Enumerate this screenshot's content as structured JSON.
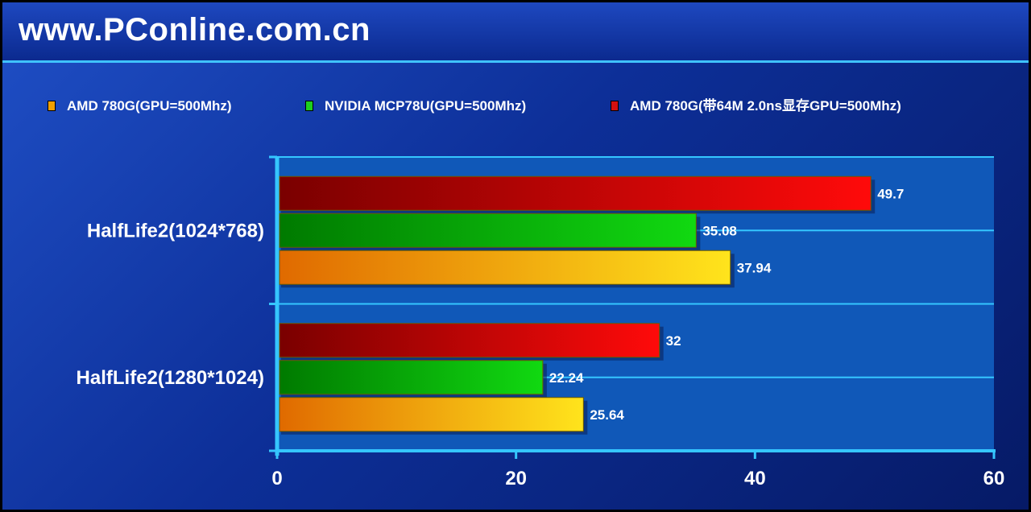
{
  "header": {
    "site_title": "www.PConline.com.cn"
  },
  "chart_data": {
    "type": "bar",
    "orientation": "horizontal",
    "categories": [
      "HalfLife2(1024*768)",
      "HalfLife2(1280*1024)"
    ],
    "series": [
      {
        "name": "AMD 780G(GPU=500Mhz)",
        "values": [
          37.94,
          25.64
        ],
        "color_dark": "#e06a00",
        "color_light": "#ffe41c",
        "swatch": "#f0a000"
      },
      {
        "name": "NVIDIA MCP78U(GPU=500Mhz)",
        "values": [
          35.08,
          22.24
        ],
        "color_dark": "#007a00",
        "color_light": "#11d911",
        "swatch": "#1dcf1d"
      },
      {
        "name": "AMD 780G(带64M 2.0ns显存GPU=500Mhz)",
        "values": [
          49.7,
          32
        ],
        "color_dark": "#7a0000",
        "color_light": "#ff0a0a",
        "swatch": "#d41010"
      }
    ],
    "data_labels": [
      [
        "37.94",
        "25.64"
      ],
      [
        "35.08",
        "22.24"
      ],
      [
        "49.7",
        "32"
      ]
    ],
    "xlim": [
      0,
      60
    ],
    "xticks": [
      0,
      20,
      40,
      60
    ],
    "xtick_labels": [
      "0",
      "20",
      "40",
      "60"
    ],
    "grid": true,
    "legend_position": "top",
    "axis_color": "#35c6ff",
    "plot_background": "#1058b8"
  }
}
